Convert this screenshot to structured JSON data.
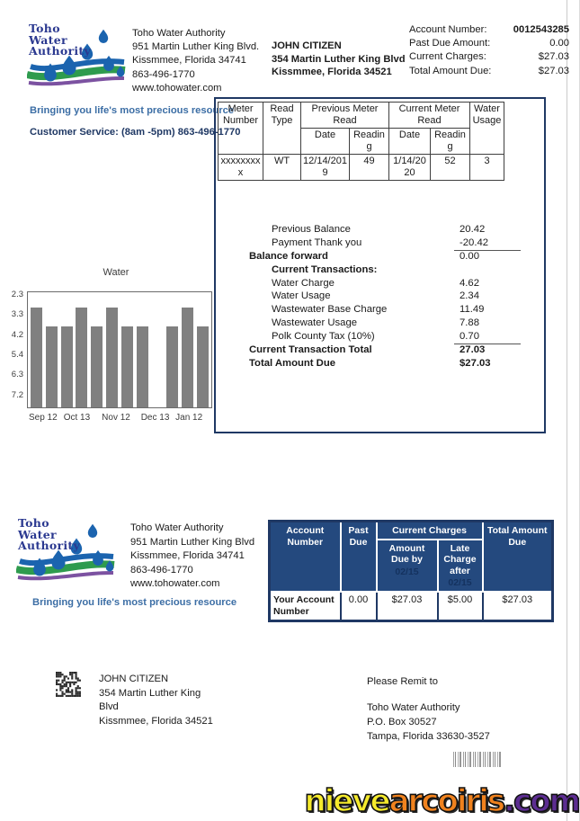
{
  "logo": {
    "line1": "Toho",
    "line2": "Water",
    "line3": "Authority"
  },
  "tagline": "Bringing you life's most precious resource",
  "header": {
    "utility": {
      "name": "Toho Water Authority",
      "address1": "951 Martin Luther King Blvd.",
      "address2": "Kissmmee, Florida 34741",
      "phone": "863-496-1770",
      "website": "www.tohowater.com"
    },
    "customer": {
      "name": "JOHN CITIZEN",
      "address1": "354 Martin Luther King Blvd",
      "address2": "Kissmmee, Florida 34521"
    },
    "account_summary": [
      {
        "label": "Account Number:",
        "value": "0012543285",
        "bold": true
      },
      {
        "label": "Past Due Amount:",
        "value": "0.00",
        "bold": false
      },
      {
        "label": "Current Charges:",
        "value": "$27.03",
        "bold": false
      },
      {
        "label": "Total Amount Due:",
        "value": "$27.03",
        "bold": false
      }
    ],
    "customer_service": "Customer Service: (8am -5pm) 863-496-1770"
  },
  "meter_table": {
    "headers": {
      "meter_number": "Meter Number",
      "read_type": "Read Type",
      "previous_group": "Previous Meter Read",
      "current_group": "Current Meter Read",
      "date": "Date",
      "reading": "Reading",
      "usage": "Water Usage"
    },
    "row": {
      "meter_number": "xxxxxxxxx",
      "read_type": "WT",
      "prev_date": "12/14/2019",
      "prev_reading": "49",
      "curr_date": "1/14/2020",
      "curr_reading": "52",
      "usage": "3"
    }
  },
  "transactions": [
    {
      "label": "Previous Balance",
      "amount": "20.42",
      "indent": 1,
      "bold": false,
      "amount_bold": false,
      "rule_below": false
    },
    {
      "label": "Payment Thank you",
      "amount": "-20.42",
      "indent": 1,
      "bold": false,
      "amount_bold": false,
      "rule_below": true
    },
    {
      "label": "Balance forward",
      "amount": "0.00",
      "indent": 0,
      "bold": true,
      "amount_bold": false,
      "rule_below": false
    },
    {
      "label": "Current Transactions:",
      "amount": "",
      "indent": 1,
      "bold": true,
      "amount_bold": false,
      "rule_below": false
    },
    {
      "label": "Water Charge",
      "amount": "4.62",
      "indent": 1,
      "bold": false,
      "amount_bold": false,
      "rule_below": false
    },
    {
      "label": "Water Usage",
      "amount": "2.34",
      "indent": 1,
      "bold": false,
      "amount_bold": false,
      "rule_below": false
    },
    {
      "label": "Wastewater Base Charge",
      "amount": "11.49",
      "indent": 1,
      "bold": false,
      "amount_bold": false,
      "rule_below": false
    },
    {
      "label": "Wastewater Usage",
      "amount": "7.88",
      "indent": 1,
      "bold": false,
      "amount_bold": false,
      "rule_below": false
    },
    {
      "label": "Polk County Tax (10%)",
      "amount": "0.70",
      "indent": 1,
      "bold": false,
      "amount_bold": false,
      "rule_below": true
    },
    {
      "label": "Current Transaction Total",
      "amount": "27.03",
      "indent": 0,
      "bold": true,
      "amount_bold": true,
      "rule_below": false
    },
    {
      "label": "Total Amount Due",
      "amount": "$27.03",
      "indent": 0,
      "bold": true,
      "amount_bold": true,
      "rule_below": false
    }
  ],
  "chart_data": {
    "type": "bar",
    "title": "Water",
    "yticks": [
      "2.3",
      "3.3",
      "4.2",
      "5.4",
      "6.3",
      "7.2"
    ],
    "xticks": [
      "Sep 12",
      "Oct 13",
      "Nov 12",
      "Dec 13",
      "Jan 12"
    ],
    "bars_rel_height": [
      0.87,
      0.7,
      0.7,
      0.87,
      0.7,
      0.87,
      0.7,
      0.7,
      0,
      0.7,
      0.87,
      0.7
    ],
    "bar_color": "#808080",
    "grid": false,
    "legend": false
  },
  "bottom_table": {
    "header": {
      "account_number": "Account Number",
      "past_due": "Past Due",
      "current_charges": "Current Charges",
      "amount_due_by": "Amount Due by",
      "due_date": "02/15",
      "late_charge_after": "Late Charge after",
      "late_date": "02/15",
      "total_amount_due": "Total Amount Due"
    },
    "row": {
      "account_number": "Your Account Number",
      "past_due": "0.00",
      "amount_due": "$27.03",
      "late_charge": "$5.00",
      "total_due": "$27.03"
    }
  },
  "footer": {
    "utility": {
      "name": "Toho Water Authority",
      "address1": "951 Martin Luther King Blvd",
      "address2": "Kissmmee, Florida 34741",
      "phone": "863-496-1770",
      "website": "www.tohowater.com"
    },
    "mailing": {
      "name": "JOHN CITIZEN",
      "address1": "354 Martin Luther King",
      "address2": "Blvd",
      "address3": "Kissmmee, Florida 34521"
    },
    "remit": {
      "heading": "Please Remit to",
      "name": "Toho Water Authority",
      "address1": "P.O. Box 30527",
      "address2": "Tampa, Florida 33630-3527"
    }
  },
  "watermark": {
    "parts": [
      {
        "text": "nieve",
        "color": "#F5EA2C"
      },
      {
        "text": "arcoiris",
        "color": "#F0821E"
      },
      {
        "text": ".com",
        "color": "#5C2D91"
      }
    ]
  },
  "colors": {
    "navy": "#1F3864",
    "table_header_blue": "#24497E",
    "header_date_navy": "#14325F",
    "tagline_blue": "#3C6EA5",
    "logo_blue": "#2B3990",
    "bar_gray": "#808080",
    "watermark_yellow": "#F5EA2C",
    "watermark_orange": "#F0821E",
    "watermark_purple": "#5C2D91"
  }
}
